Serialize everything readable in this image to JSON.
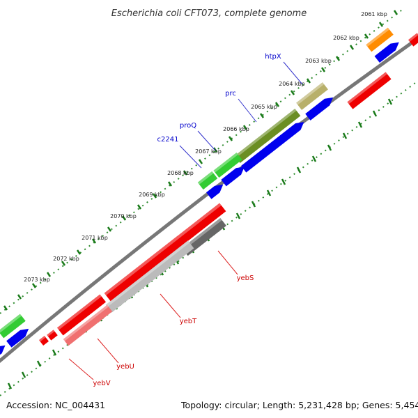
{
  "title": "Escherichia coli CFT073, complete genome",
  "footer": {
    "accession": "Accession: NC_004431",
    "summary": "Topology: circular; Length: 5,231,428 bp; Genes: 5,454"
  },
  "colors": {
    "backbone": "#777777",
    "dotted_ring": "#2e8b2e",
    "tick": "#1a7a1a",
    "label_blue": "#0000cc",
    "label_red": "#cc0000",
    "leader_blue": "#3333cc",
    "leader_red": "#dd2222"
  },
  "kbp_labels": [
    "2061 kbp",
    "2062 kbp",
    "2063 kbp",
    "2064 kbp",
    "2065 kbp",
    "2066 kbp",
    "2067 kbp",
    "2068 kbp",
    "2069 kbp",
    "2070 kbp",
    "2071 kbp",
    "2072 kbp",
    "2073 kbp"
  ],
  "gene_labels_forward": [
    "htpX",
    "prc",
    "proQ",
    "c2241"
  ],
  "gene_labels_reverse": [
    "yebS",
    "yebT",
    "yebU",
    "yebV"
  ]
}
